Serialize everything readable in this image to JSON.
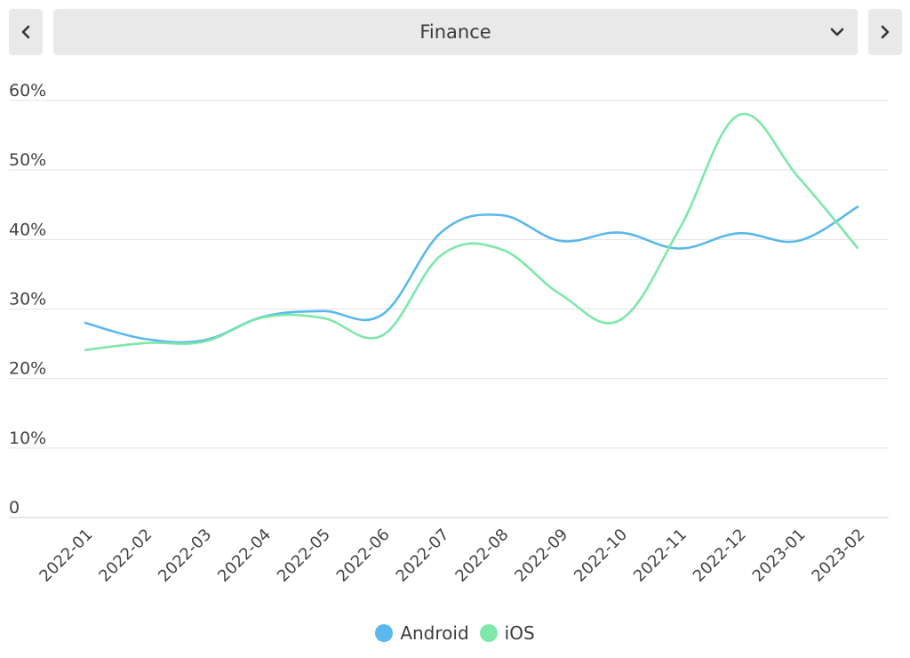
{
  "header": {
    "selected_category": "Finance",
    "prev_icon": "chevron-left-icon",
    "next_icon": "chevron-right-icon",
    "dropdown_icon": "chevron-down-icon"
  },
  "chart_data": {
    "type": "line",
    "title": "",
    "xlabel": "",
    "ylabel": "",
    "categories": [
      "2022-01",
      "2022-02",
      "2022-03",
      "2022-04",
      "2022-05",
      "2022-06",
      "2022-07",
      "2022-08",
      "2022-09",
      "2022-10",
      "2022-11",
      "2022-12",
      "2023-01",
      "2023-02"
    ],
    "y_ticks": [
      "0",
      "10%",
      "20%",
      "30%",
      "40%",
      "50%",
      "60%"
    ],
    "ylim": [
      0,
      60
    ],
    "grid": true,
    "legend_position": "bottom",
    "series": [
      {
        "name": "Android",
        "color": "#5ab8ec",
        "values": [
          28.0,
          25.7,
          25.5,
          28.9,
          29.7,
          29.2,
          41.1,
          43.5,
          39.8,
          41.0,
          38.7,
          40.9,
          39.8,
          44.7
        ]
      },
      {
        "name": "iOS",
        "color": "#7de8a9",
        "values": [
          24.1,
          25.1,
          25.3,
          28.8,
          28.7,
          26.2,
          37.8,
          38.6,
          32.1,
          28.4,
          41.5,
          57.9,
          49.0,
          38.8
        ]
      }
    ]
  }
}
